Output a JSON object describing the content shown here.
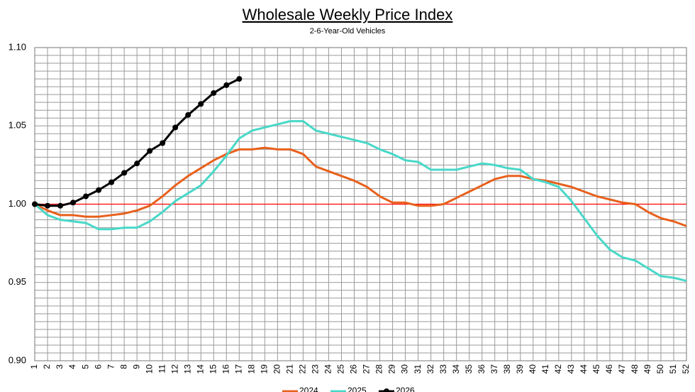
{
  "chart_data": {
    "type": "line",
    "title": "Wholesale Weekly Price Index",
    "subtitle": "2-6-Year-Old Vehicles",
    "x": [
      1,
      2,
      3,
      4,
      5,
      6,
      7,
      8,
      9,
      10,
      11,
      12,
      13,
      14,
      15,
      16,
      17,
      18,
      19,
      20,
      21,
      22,
      23,
      24,
      25,
      26,
      27,
      28,
      29,
      30,
      31,
      32,
      33,
      34,
      35,
      36,
      37,
      38,
      39,
      40,
      41,
      42,
      43,
      44,
      45,
      46,
      47,
      48,
      49,
      50,
      51,
      52
    ],
    "xlim": [
      1,
      52
    ],
    "xticks": [
      1,
      2,
      3,
      4,
      5,
      6,
      7,
      8,
      9,
      10,
      11,
      12,
      13,
      14,
      15,
      16,
      17,
      18,
      19,
      20,
      21,
      22,
      23,
      24,
      25,
      26,
      27,
      28,
      29,
      30,
      31,
      32,
      33,
      34,
      35,
      36,
      37,
      38,
      39,
      40,
      41,
      42,
      43,
      44,
      45,
      46,
      47,
      48,
      49,
      50,
      51,
      52
    ],
    "ylim": [
      0.9,
      1.1
    ],
    "yticks": [
      {
        "value": 0.9,
        "label": "0.90"
      },
      {
        "value": 0.95,
        "label": "0.95"
      },
      {
        "value": 1.0,
        "label": "1.00"
      },
      {
        "value": 1.05,
        "label": "1.05"
      },
      {
        "value": 1.1,
        "label": "1.10"
      }
    ],
    "y_minor_ticks": [
      0.905,
      0.91,
      0.915,
      0.92,
      0.925,
      0.93,
      0.935,
      0.94,
      0.945,
      0.955,
      0.96,
      0.965,
      0.97,
      0.975,
      0.98,
      0.985,
      0.99,
      0.995,
      1.005,
      1.01,
      1.015,
      1.02,
      1.025,
      1.03,
      1.035,
      1.04,
      1.045,
      1.055,
      1.06,
      1.065,
      1.07,
      1.075,
      1.08,
      1.085,
      1.09,
      1.095
    ],
    "grid": true,
    "reference_line": {
      "value": 1.0,
      "color": "#ff0000"
    },
    "legend": "bottom",
    "series": [
      {
        "name": "2024",
        "color": "#e8601c",
        "markers": false,
        "values": [
          1.0,
          0.996,
          0.993,
          0.993,
          0.992,
          0.992,
          0.993,
          0.994,
          0.996,
          0.999,
          1.005,
          1.012,
          1.018,
          1.023,
          1.028,
          1.032,
          1.035,
          1.035,
          1.036,
          1.035,
          1.035,
          1.032,
          1.024,
          1.021,
          1.018,
          1.015,
          1.011,
          1.005,
          1.001,
          1.001,
          0.999,
          0.999,
          1.0,
          1.004,
          1.008,
          1.012,
          1.016,
          1.018,
          1.018,
          1.016,
          1.015,
          1.013,
          1.011,
          1.008,
          1.005,
          1.003,
          1.001,
          1.0,
          0.995,
          0.991,
          0.989,
          0.986
        ]
      },
      {
        "name": "2025",
        "color": "#48d8c8",
        "markers": false,
        "values": [
          1.0,
          0.993,
          0.99,
          0.989,
          0.988,
          0.984,
          0.984,
          0.985,
          0.985,
          0.989,
          0.995,
          1.002,
          1.007,
          1.012,
          1.021,
          1.031,
          1.042,
          1.047,
          1.049,
          1.051,
          1.053,
          1.053,
          1.047,
          1.045,
          1.043,
          1.041,
          1.039,
          1.035,
          1.032,
          1.028,
          1.027,
          1.022,
          1.022,
          1.022,
          1.024,
          1.026,
          1.025,
          1.023,
          1.022,
          1.016,
          1.014,
          1.011,
          1.002,
          0.991,
          0.98,
          0.971,
          0.966,
          0.964,
          0.959,
          0.954,
          0.953,
          0.951
        ]
      },
      {
        "name": "2026",
        "color": "#000000",
        "markers": true,
        "values": [
          1.0,
          0.999,
          0.999,
          1.001,
          1.005,
          1.009,
          1.014,
          1.02,
          1.026,
          1.034,
          1.039,
          1.049,
          1.057,
          1.064,
          1.071,
          1.076,
          1.08,
          null,
          null,
          null,
          null,
          null,
          null,
          null,
          null,
          null,
          null,
          null,
          null,
          null,
          null,
          null,
          null,
          null,
          null,
          null,
          null,
          null,
          null,
          null,
          null,
          null,
          null,
          null,
          null,
          null,
          null,
          null,
          null,
          null,
          null,
          null
        ]
      }
    ]
  }
}
